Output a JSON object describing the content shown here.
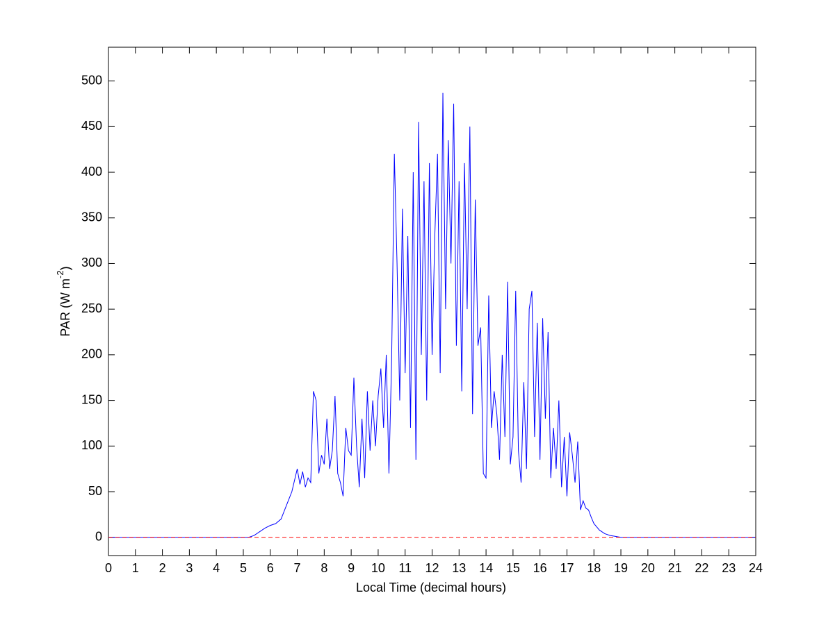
{
  "chart_data": {
    "type": "line",
    "xlabel": "Local Time (decimal hours)",
    "ylabel": {
      "text": "PAR (W m",
      "sup": "-2",
      "end": ")"
    },
    "xlim": [
      0,
      24
    ],
    "xticks": [
      0,
      1,
      2,
      3,
      4,
      5,
      6,
      7,
      8,
      9,
      10,
      11,
      12,
      13,
      14,
      15,
      16,
      17,
      18,
      19,
      20,
      21,
      22,
      23,
      24
    ],
    "ylim": [
      -20,
      537
    ],
    "yticks": [
      0,
      50,
      100,
      150,
      200,
      250,
      300,
      350,
      400,
      450,
      500
    ],
    "grid": false,
    "series": [
      {
        "color": "#0000ff",
        "dash": false,
        "x": [
          0,
          5,
          5.2,
          5.4,
          5.6,
          5.8,
          6.0,
          6.2,
          6.4,
          6.6,
          6.8,
          7.0,
          7.1,
          7.2,
          7.3,
          7.4,
          7.5,
          7.6,
          7.7,
          7.8,
          7.9,
          8.0,
          8.1,
          8.2,
          8.3,
          8.4,
          8.5,
          8.6,
          8.7,
          8.8,
          8.9,
          9.0,
          9.1,
          9.2,
          9.3,
          9.4,
          9.5,
          9.6,
          9.7,
          9.8,
          9.9,
          10.0,
          10.1,
          10.2,
          10.3,
          10.4,
          10.5,
          10.6,
          10.7,
          10.8,
          10.9,
          11.0,
          11.1,
          11.2,
          11.3,
          11.4,
          11.5,
          11.6,
          11.7,
          11.8,
          11.9,
          12.0,
          12.1,
          12.2,
          12.3,
          12.4,
          12.5,
          12.6,
          12.7,
          12.8,
          12.9,
          13.0,
          13.1,
          13.2,
          13.3,
          13.4,
          13.5,
          13.6,
          13.7,
          13.8,
          13.9,
          14.0,
          14.1,
          14.2,
          14.3,
          14.4,
          14.5,
          14.6,
          14.7,
          14.8,
          14.9,
          15.0,
          15.1,
          15.2,
          15.3,
          15.4,
          15.5,
          15.6,
          15.7,
          15.8,
          15.9,
          16.0,
          16.1,
          16.2,
          16.3,
          16.4,
          16.5,
          16.6,
          16.7,
          16.8,
          16.9,
          17.0,
          17.1,
          17.2,
          17.3,
          17.4,
          17.5,
          17.6,
          17.7,
          17.8,
          17.9,
          18.0,
          18.2,
          18.4,
          18.6,
          18.8,
          19.0,
          24
        ],
        "values": [
          0,
          0,
          0,
          2,
          6,
          10,
          13,
          15,
          20,
          35,
          50,
          75,
          58,
          72,
          55,
          65,
          60,
          160,
          150,
          70,
          90,
          80,
          130,
          75,
          95,
          155,
          70,
          60,
          45,
          120,
          95,
          90,
          175,
          100,
          55,
          130,
          65,
          160,
          95,
          150,
          100,
          155,
          185,
          120,
          200,
          70,
          195,
          420,
          300,
          150,
          360,
          180,
          330,
          120,
          400,
          85,
          455,
          200,
          390,
          150,
          410,
          200,
          330,
          420,
          180,
          487,
          250,
          435,
          300,
          475,
          210,
          390,
          160,
          410,
          250,
          450,
          135,
          370,
          210,
          230,
          70,
          65,
          265,
          120,
          160,
          135,
          85,
          200,
          110,
          280,
          80,
          110,
          270,
          95,
          60,
          170,
          75,
          250,
          270,
          110,
          235,
          85,
          240,
          130,
          225,
          65,
          120,
          75,
          150,
          55,
          110,
          45,
          115,
          90,
          60,
          105,
          30,
          40,
          32,
          30,
          22,
          15,
          8,
          4,
          2,
          1,
          0,
          0
        ]
      },
      {
        "color": "#ff0000",
        "dash": true,
        "x": [
          0,
          24
        ],
        "values": [
          0,
          0
        ]
      }
    ]
  }
}
